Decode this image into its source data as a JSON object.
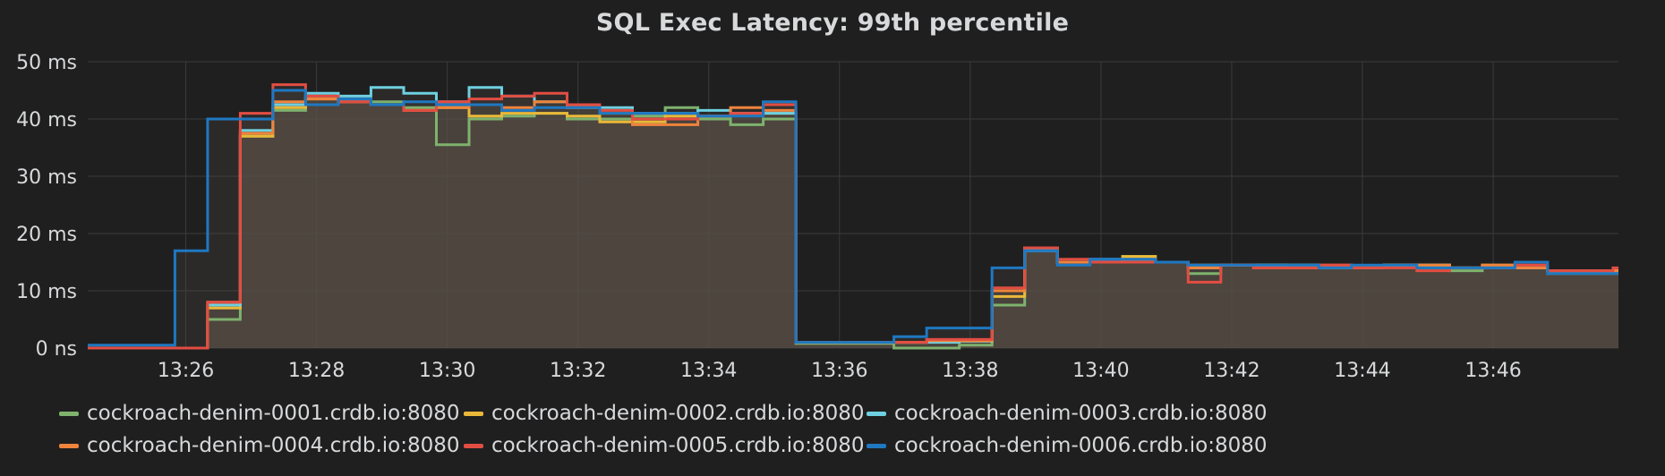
{
  "chart_data": {
    "type": "line",
    "title": "SQL Exec Latency: 99th percentile",
    "x_unit": "time (HH:MM)",
    "y_unit": "ms",
    "ylim": [
      0,
      50
    ],
    "xlim": [
      "13:24:30",
      "13:47:55"
    ],
    "y_ticks": [
      {
        "value": 0,
        "label": "0 ns"
      },
      {
        "value": 10,
        "label": "10 ms"
      },
      {
        "value": 20,
        "label": "20 ms"
      },
      {
        "value": 30,
        "label": "30 ms"
      },
      {
        "value": 40,
        "label": "40 ms"
      },
      {
        "value": 50,
        "label": "50 ms"
      }
    ],
    "x_ticks": [
      "13:26",
      "13:28",
      "13:30",
      "13:32",
      "13:34",
      "13:36",
      "13:38",
      "13:40",
      "13:42",
      "13:44",
      "13:46"
    ],
    "grid": true,
    "area_fill": "#5c534b",
    "legend_position": "bottom",
    "x": [
      "13:24:30",
      "13:25:20",
      "13:25:50",
      "13:26:20",
      "13:26:50",
      "13:27:20",
      "13:27:50",
      "13:28:20",
      "13:28:50",
      "13:29:20",
      "13:29:50",
      "13:30:20",
      "13:30:50",
      "13:31:20",
      "13:31:50",
      "13:32:20",
      "13:32:50",
      "13:33:20",
      "13:33:50",
      "13:34:20",
      "13:34:50",
      "13:35:20",
      "13:35:50",
      "13:36:20",
      "13:36:50",
      "13:37:20",
      "13:37:50",
      "13:38:20",
      "13:38:50",
      "13:39:20",
      "13:39:50",
      "13:40:20",
      "13:40:50",
      "13:41:20",
      "13:41:50",
      "13:42:20",
      "13:42:50",
      "13:43:20",
      "13:43:50",
      "13:44:20",
      "13:44:50",
      "13:45:20",
      "13:45:50",
      "13:46:20",
      "13:46:50",
      "13:47:20",
      "13:47:50"
    ],
    "series": [
      {
        "name": "cockroach-denim-0001.crdb.io:8080",
        "color": "#7eb26d",
        "values": [
          0,
          0,
          0,
          5,
          37,
          41.5,
          44,
          43.5,
          43,
          42,
          35.5,
          40,
          40.5,
          41,
          40,
          40,
          40.5,
          42,
          40,
          39,
          40,
          0.8,
          0.8,
          0.8,
          0,
          0,
          0.5,
          7.5,
          17,
          15,
          15,
          16,
          15,
          13,
          14.5,
          14.5,
          14.5,
          14,
          14,
          14.5,
          14,
          13.5,
          14,
          14,
          13,
          13,
          13
        ]
      },
      {
        "name": "cockroach-denim-0002.crdb.io:8080",
        "color": "#eab839",
        "values": [
          0,
          0,
          0,
          7,
          37,
          42,
          43.5,
          43,
          42.5,
          41.5,
          42,
          40.5,
          41,
          41,
          40.5,
          39.5,
          39.5,
          40.5,
          40.5,
          41,
          41,
          1,
          1,
          1,
          1,
          1.2,
          1.2,
          9,
          17.5,
          15,
          15,
          16,
          15,
          14.5,
          14.5,
          14.5,
          14,
          14,
          14,
          14.5,
          14.5,
          14,
          14.5,
          14,
          13.5,
          13.5,
          13.5
        ]
      },
      {
        "name": "cockroach-denim-0003.crdb.io:8080",
        "color": "#6ed0e0",
        "values": [
          0,
          0,
          0,
          7.5,
          38,
          42.5,
          44.5,
          44,
          45.5,
          44.5,
          43,
          45.5,
          44,
          43,
          42,
          42,
          41,
          41,
          41.5,
          41,
          41,
          1,
          1,
          1,
          1,
          1,
          1.2,
          10,
          17,
          15,
          15.5,
          15.5,
          15,
          14,
          14.5,
          14.5,
          14.5,
          14,
          14,
          14.5,
          14.5,
          14,
          14,
          14,
          13.5,
          13.5,
          13.5
        ]
      },
      {
        "name": "cockroach-denim-0004.crdb.io:8080",
        "color": "#ef843c",
        "values": [
          0,
          0,
          0,
          8,
          37.5,
          43,
          43.5,
          43,
          42.5,
          41.5,
          42,
          42.5,
          42,
          43,
          42,
          41,
          39,
          39,
          40.5,
          42,
          41.5,
          1,
          1,
          1,
          1,
          1.3,
          1.3,
          10,
          17.5,
          15,
          15,
          15.5,
          15,
          14,
          14.5,
          14,
          14,
          14.5,
          14,
          14.5,
          14.5,
          14,
          14.5,
          14,
          13.5,
          13.5,
          13.5
        ]
      },
      {
        "name": "cockroach-denim-0005.crdb.io:8080",
        "color": "#e24d42",
        "values": [
          0,
          0,
          0,
          8,
          41,
          46,
          44,
          43,
          42.5,
          41.5,
          43,
          43.5,
          44,
          44.5,
          42.5,
          41.5,
          40,
          40,
          40.5,
          41,
          42.5,
          1,
          1,
          1,
          1,
          1.5,
          1.5,
          10.5,
          17.5,
          15.5,
          15,
          15,
          15,
          11.5,
          14.5,
          14,
          14,
          14.5,
          14,
          14,
          13.5,
          14,
          14,
          14.5,
          13.5,
          13.5,
          14
        ]
      },
      {
        "name": "cockroach-denim-0006.crdb.io:8080",
        "color": "#1f78c1",
        "values": [
          0.5,
          0.5,
          17,
          40,
          40,
          45,
          42.5,
          43.5,
          42.5,
          43,
          42.5,
          42.5,
          41.5,
          42,
          42,
          41,
          41,
          41,
          40.5,
          40.5,
          43,
          1,
          1,
          1,
          2,
          3.5,
          3.5,
          14,
          17,
          14.5,
          15.5,
          15.5,
          15,
          14.5,
          14.5,
          14.5,
          14.5,
          14,
          14.5,
          14.5,
          14,
          14,
          14,
          15,
          13,
          13,
          13
        ]
      }
    ]
  }
}
